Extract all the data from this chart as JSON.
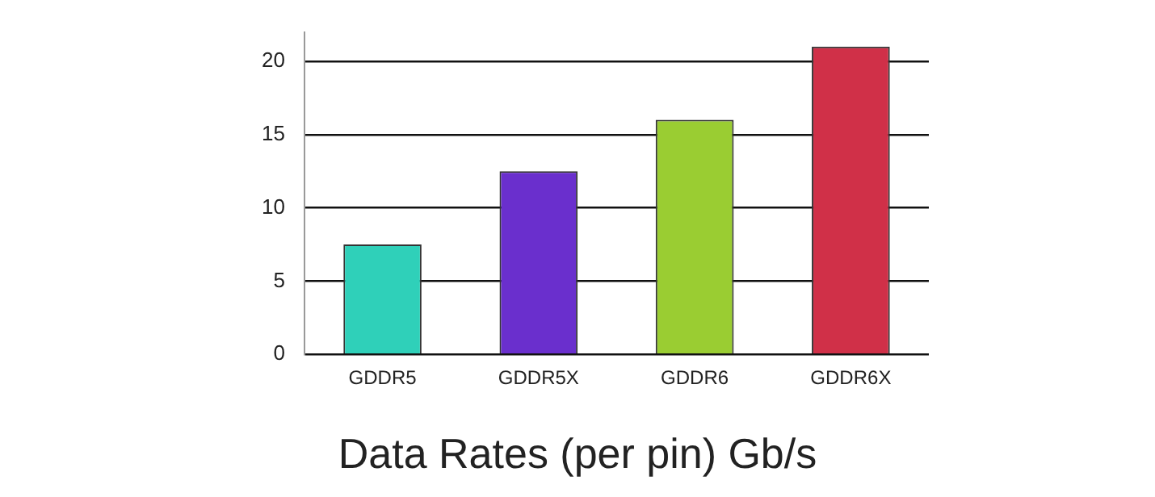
{
  "chart_data": {
    "type": "bar",
    "title": "Data Rates (per pin) Gb/s",
    "categories": [
      "GDDR5",
      "GDDR5X",
      "GDDR6",
      "GDDR6X"
    ],
    "values": [
      7.5,
      12.5,
      16,
      21
    ],
    "colors": [
      "#2fd0b9",
      "#6a2fcd",
      "#9acd32",
      "#d03048"
    ],
    "ylim": [
      0,
      22
    ],
    "yticks": [
      0,
      5,
      10,
      15,
      20
    ],
    "grid": "y",
    "legend": false
  }
}
